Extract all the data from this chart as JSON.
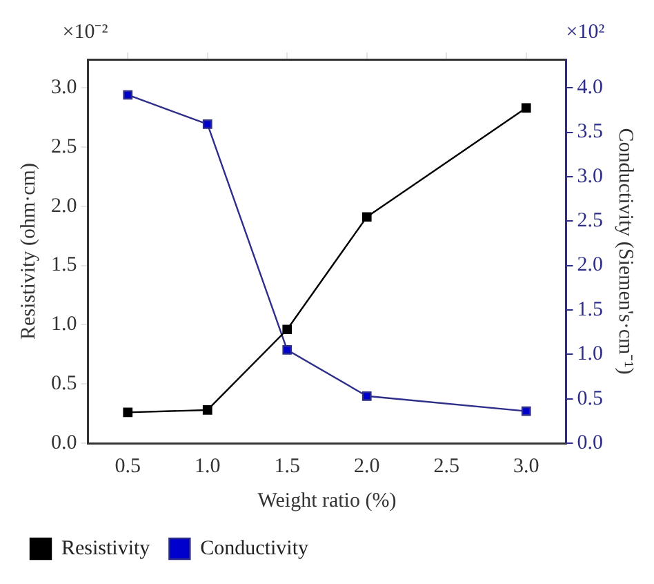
{
  "chart_data": {
    "type": "line",
    "xlabel": "Weight ratio (%)",
    "ylabel": "Resistivity (ohm·cm)",
    "y2label": "Conductivity (Siemen's·cm⁻¹)",
    "x": [
      0.5,
      1.0,
      1.5,
      2.0,
      3.0
    ],
    "series": [
      {
        "name": "Resistivity",
        "color": "#000000",
        "values": [
          0.26,
          0.28,
          0.96,
          1.91,
          2.83
        ]
      },
      {
        "name": "Conductivity",
        "color": "#0000cc",
        "axis": "y2",
        "values": [
          3.92,
          3.59,
          1.05,
          0.53,
          0.36
        ]
      }
    ],
    "xlim": [
      0.25,
      3.25
    ],
    "xticks": [
      0.5,
      {
        "value": 1,
        "label": "1.0"
      },
      1.5,
      {
        "value": 2,
        "label": "2.0"
      },
      2.5,
      {
        "value": 3,
        "label": "3.0"
      }
    ],
    "ylim": [
      0,
      3.24
    ],
    "yticks": [
      {
        "value": 0,
        "label": "0.0"
      },
      0.5,
      {
        "value": 1,
        "label": "1.0"
      },
      1.5,
      {
        "value": 2,
        "label": "2.0"
      },
      2.5,
      {
        "value": 3,
        "label": "3.0"
      }
    ],
    "y2lim": [
      0,
      4.32
    ],
    "y2ticks": [
      {
        "value": 0,
        "label": "0.0"
      },
      0.5,
      {
        "value": 1,
        "label": "1.0"
      },
      1.5,
      {
        "value": 2,
        "label": "2.0"
      },
      2.5,
      {
        "value": 3,
        "label": "3.0"
      },
      3.5,
      {
        "value": 4,
        "label": "4.0"
      }
    ],
    "annotations": [
      "×10⁻²",
      "×10²"
    ],
    "marker": "square",
    "line_style": "solid",
    "grid": false,
    "legend": "bottom"
  }
}
